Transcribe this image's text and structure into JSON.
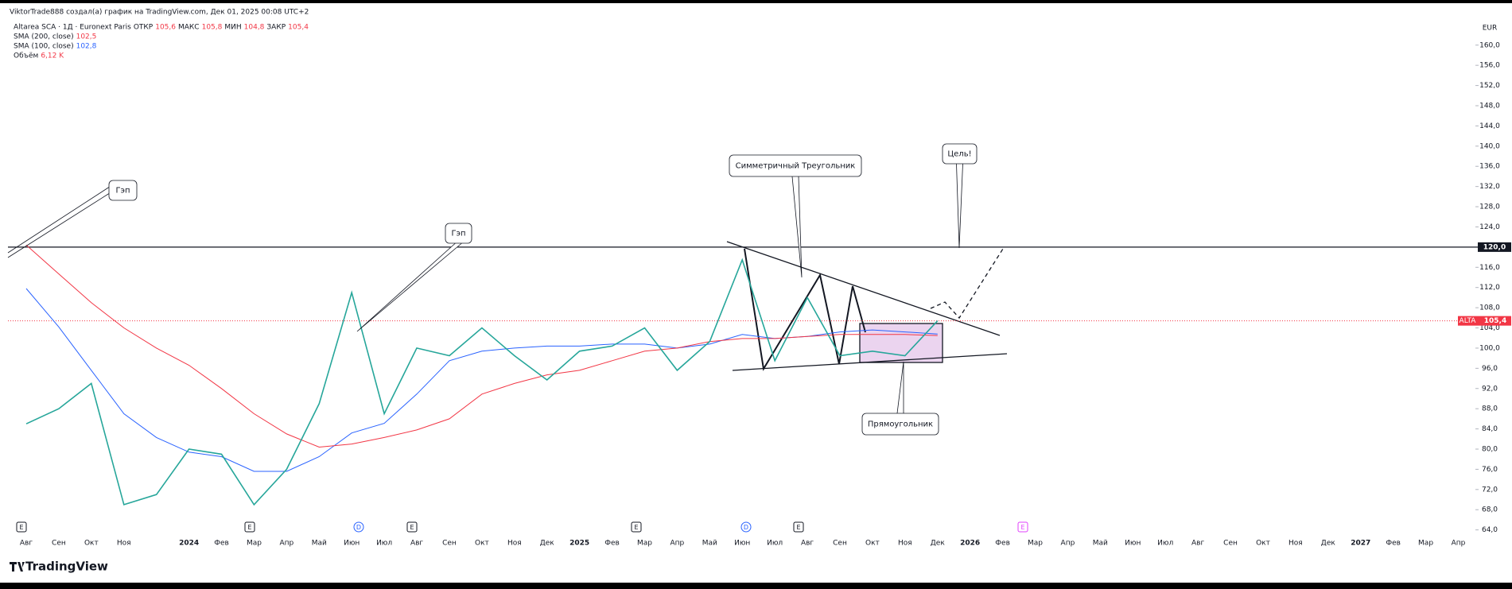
{
  "header": {
    "author": "ViktorTrade888 создал(а) график на TradingView.com, Дек 01, 2025 00:08 UTC+2"
  },
  "footer": {
    "brand": "TradingView"
  },
  "chart_data": {
    "type": "line",
    "currency": "EUR",
    "legend": {
      "symbol": "Altarea SCA · 1Д · Euronext Paris",
      "ohlc": [
        {
          "name": "ОТКР",
          "text": "105,6"
        },
        {
          "name": "МАКС",
          "text": "105,8"
        },
        {
          "name": "МИН",
          "text": "104,8"
        },
        {
          "name": "ЗАКР",
          "text": "105,4"
        }
      ],
      "indicators": [
        {
          "name": "SMA (200, close)",
          "text": "102,5",
          "color": "#f23645"
        },
        {
          "name": "SMA (100, close)",
          "text": "102,8",
          "color": "#2962ff"
        },
        {
          "name": "Объём",
          "text": "6,12 K",
          "color": "#f23645"
        }
      ]
    },
    "categories": [
      "Авг",
      "Сен",
      "Окт",
      "Ноя",
      null,
      "2024",
      "Фев",
      "Мар",
      "Апр",
      "Май",
      "Июн",
      "Июл",
      "Авг",
      "Сен",
      "Окт",
      "Ноя",
      "Дек",
      "2025",
      "Фев",
      "Мар",
      "Апр",
      "Май",
      "Июн",
      "Июл",
      "Авг",
      "Сен",
      "Окт",
      "Ноя",
      "Дек",
      "2026",
      "Фев",
      "Мар",
      "Апр",
      "Май",
      "Июн",
      "Июл",
      "Авг",
      "Сен",
      "Окт",
      "Ноя",
      "Дек",
      "2027",
      "Фев",
      "Мар",
      "Апр"
    ],
    "series": [
      {
        "name": "ALTA",
        "color": "#26a69a",
        "values": [
          85,
          88,
          93,
          69,
          71,
          80,
          79,
          69,
          76,
          89,
          111,
          87,
          100,
          98.5,
          104,
          98.5,
          93.7,
          99.4,
          100.4,
          104,
          95.6,
          101.3,
          117.5,
          97.5,
          110,
          98.5,
          99.4,
          98.5,
          105.4,
          null,
          null,
          null,
          null,
          null,
          null,
          null,
          null,
          null,
          null,
          null,
          null,
          null,
          null,
          null,
          null
        ]
      },
      {
        "name": "SMA (200, close)",
        "color": "#f23645",
        "values": [
          120.4,
          114.7,
          109,
          104,
          100,
          96.6,
          92,
          87,
          83,
          80.4,
          81,
          82.3,
          83.8,
          86,
          90.9,
          93,
          94.7,
          95.6,
          97.5,
          99.4,
          100,
          101.3,
          101.9,
          101.9,
          102.3,
          102.7,
          102.7,
          102.7,
          102.5,
          null,
          null,
          null,
          null,
          null,
          null,
          null,
          null,
          null,
          null,
          null,
          null,
          null,
          null,
          null,
          null
        ]
      },
      {
        "name": "SMA (100, close)",
        "color": "#2962ff",
        "values": [
          111.8,
          104.2,
          95.6,
          87,
          82.3,
          79.4,
          78.5,
          75.6,
          75.6,
          78.5,
          83.2,
          85.1,
          90.9,
          97.5,
          99.4,
          100,
          100.4,
          100.4,
          100.8,
          100.8,
          100,
          100.8,
          102.7,
          101.9,
          102.3,
          103.2,
          103.6,
          103.2,
          102.8,
          null,
          null,
          null,
          null,
          null,
          null,
          null,
          null,
          null,
          null,
          null,
          null,
          null,
          null,
          null,
          null
        ]
      }
    ],
    "ylim": [
      63,
      165
    ],
    "yticks": [
      {
        "value": 64,
        "label": "64,0"
      },
      {
        "value": 68,
        "label": "68,0"
      },
      {
        "value": 72,
        "label": "72,0"
      },
      {
        "value": 76,
        "label": "76,0"
      },
      {
        "value": 80,
        "label": "80,0"
      },
      {
        "value": 84,
        "label": "84,0"
      },
      {
        "value": 88,
        "label": "88,0"
      },
      {
        "value": 92,
        "label": "92,0"
      },
      {
        "value": 96,
        "label": "96,0"
      },
      {
        "value": 100,
        "label": "100,0"
      },
      {
        "value": 104,
        "label": "104,0"
      },
      {
        "value": 108,
        "label": "108,0"
      },
      {
        "value": 112,
        "label": "112,0"
      },
      {
        "value": 116,
        "label": "116,0"
      },
      {
        "value": 124,
        "label": "124,0"
      },
      {
        "value": 128,
        "label": "128,0"
      },
      {
        "value": 132,
        "label": "132,0"
      },
      {
        "value": 136,
        "label": "136,0"
      },
      {
        "value": 140,
        "label": "140,0"
      },
      {
        "value": 144,
        "label": "144,0"
      },
      {
        "value": 148,
        "label": "148,0"
      },
      {
        "value": 152,
        "label": "152,0"
      },
      {
        "value": 156,
        "label": "156,0"
      },
      {
        "value": 160,
        "label": "160,0"
      }
    ],
    "hline": {
      "value": 120,
      "label": "120,0"
    },
    "price_line": {
      "value": 105.4,
      "label": "105,4"
    },
    "annotations": [
      {
        "text": "Гэп"
      },
      {
        "text": "Гэп"
      },
      {
        "text": "Симметричный Треугольник"
      },
      {
        "text": "Цель!"
      },
      {
        "text": "Прямоугольник"
      }
    ],
    "events": [
      "E",
      "E",
      "D",
      "E",
      "E",
      "D",
      "E",
      "E"
    ]
  }
}
